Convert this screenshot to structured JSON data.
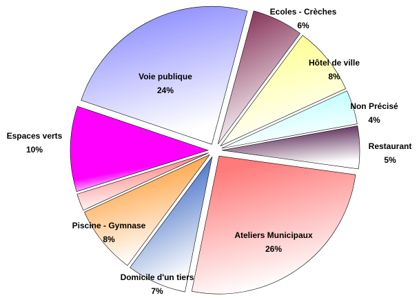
{
  "chart_data": {
    "type": "pie",
    "categories": [
      "Ecoles - Crèches",
      "Hôtel de ville",
      "Non Précisé",
      "Restaurant",
      "Ateliers Municipaux",
      "Domicile d'un tiers",
      "Piscine - Gymnase",
      null,
      "Espaces verts",
      "Voie publique"
    ],
    "values": [
      6,
      8,
      4,
      5,
      26,
      7,
      8,
      2,
      10,
      24
    ],
    "value_labels": [
      "6%",
      "8%",
      "4%",
      "5%",
      "26%",
      "7%",
      "8%",
      null,
      "10%",
      "24%"
    ],
    "colors": [
      "#8c3c60",
      "#ffff90",
      "#b8ffff",
      "#50184a",
      "#ff7a7a",
      "#3060c0",
      "#ff9a30",
      "#ff7070",
      "#ff00ff",
      "#9090ff"
    ]
  }
}
